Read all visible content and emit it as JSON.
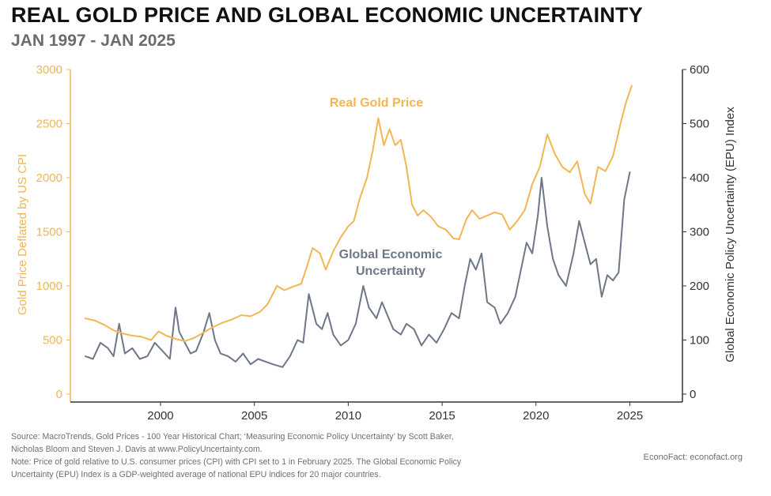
{
  "title": "REAL GOLD PRICE AND GLOBAL ECONOMIC UNCERTAINTY",
  "subtitle": "JAN 1997 - JAN 2025",
  "footer": {
    "source_line1": "Source: MacroTrends, Gold Prices - 100 Year Historical Chart; ‘Measuring Economic Policy Uncertainty’ by Scott Baker,",
    "source_line2": "Nicholas Bloom and Steven J. Davis at www.PolicyUncertainty.com.",
    "note_line1": "Note: Price of gold relative to U.S. consumer prices (CPI) with CPI set to 1 in February 2025. The Global Economic Policy",
    "note_line2": "Uncertainty (EPU) Index is a GDP-weighted average of national EPU indices for 20 major countries.",
    "credit": "EconoFact:   econofact.org"
  },
  "colors": {
    "gold": "#f2b654",
    "epu": "#6e7787",
    "title": "#111111",
    "subtitle": "#6b6b6b",
    "axis": "#333333"
  },
  "chart_data": {
    "type": "line",
    "xlabel": "",
    "xlim": [
      1995.2,
      2027.8
    ],
    "x_ticks": [
      2000,
      2005,
      2010,
      2015,
      2020,
      2025
    ],
    "ylabel_left": "Gold Price Deflated by US CPI",
    "ylim_left": [
      0,
      3000
    ],
    "y_ticks_left": [
      0,
      500,
      1000,
      1500,
      2000,
      2500,
      3000
    ],
    "ylabel_right": "Global Economic Policy Uncertainty (EPU) Index",
    "ylim_right": [
      0,
      600
    ],
    "y_ticks_right": [
      0,
      100,
      200,
      300,
      400,
      500,
      600
    ],
    "grid": false,
    "legend": "none",
    "annotations": [
      {
        "text": "Real Gold Price",
        "series": "gold"
      },
      {
        "text": "Global Economic",
        "series": "epu"
      },
      {
        "text": "Uncertainty",
        "series": "epu"
      }
    ],
    "series": [
      {
        "key": "gold",
        "name": "Real Gold Price",
        "axis": "left",
        "color": "#f2b654",
        "points": [
          [
            1996.0,
            700
          ],
          [
            1996.5,
            680
          ],
          [
            1997.0,
            640
          ],
          [
            1997.5,
            590
          ],
          [
            1998.0,
            560
          ],
          [
            1998.5,
            540
          ],
          [
            1999.0,
            530
          ],
          [
            1999.5,
            500
          ],
          [
            1999.9,
            580
          ],
          [
            2000.3,
            540
          ],
          [
            2000.8,
            510
          ],
          [
            2001.3,
            490
          ],
          [
            2001.8,
            520
          ],
          [
            2002.3,
            570
          ],
          [
            2002.8,
            620
          ],
          [
            2003.3,
            660
          ],
          [
            2003.8,
            690
          ],
          [
            2004.3,
            730
          ],
          [
            2004.8,
            720
          ],
          [
            2005.3,
            760
          ],
          [
            2005.7,
            830
          ],
          [
            2006.2,
            1000
          ],
          [
            2006.6,
            960
          ],
          [
            2007.0,
            990
          ],
          [
            2007.5,
            1020
          ],
          [
            2007.8,
            1180
          ],
          [
            2008.1,
            1350
          ],
          [
            2008.5,
            1300
          ],
          [
            2008.8,
            1150
          ],
          [
            2009.2,
            1320
          ],
          [
            2009.6,
            1450
          ],
          [
            2010.0,
            1550
          ],
          [
            2010.3,
            1600
          ],
          [
            2010.6,
            1800
          ],
          [
            2011.0,
            2000
          ],
          [
            2011.3,
            2250
          ],
          [
            2011.6,
            2550
          ],
          [
            2011.9,
            2300
          ],
          [
            2012.2,
            2450
          ],
          [
            2012.5,
            2300
          ],
          [
            2012.8,
            2350
          ],
          [
            2013.1,
            2100
          ],
          [
            2013.4,
            1750
          ],
          [
            2013.7,
            1650
          ],
          [
            2014.0,
            1700
          ],
          [
            2014.4,
            1640
          ],
          [
            2014.8,
            1550
          ],
          [
            2015.2,
            1520
          ],
          [
            2015.6,
            1440
          ],
          [
            2015.9,
            1430
          ],
          [
            2016.3,
            1620
          ],
          [
            2016.6,
            1700
          ],
          [
            2017.0,
            1620
          ],
          [
            2017.4,
            1650
          ],
          [
            2017.8,
            1680
          ],
          [
            2018.2,
            1660
          ],
          [
            2018.6,
            1520
          ],
          [
            2019.0,
            1600
          ],
          [
            2019.4,
            1700
          ],
          [
            2019.8,
            1940
          ],
          [
            2020.2,
            2100
          ],
          [
            2020.6,
            2400
          ],
          [
            2021.0,
            2220
          ],
          [
            2021.4,
            2100
          ],
          [
            2021.8,
            2050
          ],
          [
            2022.2,
            2150
          ],
          [
            2022.6,
            1850
          ],
          [
            2022.9,
            1760
          ],
          [
            2023.3,
            2100
          ],
          [
            2023.7,
            2060
          ],
          [
            2024.1,
            2200
          ],
          [
            2024.5,
            2500
          ],
          [
            2024.8,
            2700
          ],
          [
            2025.1,
            2850
          ]
        ]
      },
      {
        "key": "epu",
        "name": "Global Economic Uncertainty",
        "axis": "right",
        "color": "#6e7787",
        "points": [
          [
            1996.0,
            70
          ],
          [
            1996.4,
            65
          ],
          [
            1996.8,
            95
          ],
          [
            1997.2,
            85
          ],
          [
            1997.5,
            70
          ],
          [
            1997.8,
            130
          ],
          [
            1998.1,
            75
          ],
          [
            1998.5,
            85
          ],
          [
            1998.9,
            65
          ],
          [
            1999.3,
            70
          ],
          [
            1999.7,
            95
          ],
          [
            2000.1,
            80
          ],
          [
            2000.5,
            65
          ],
          [
            2000.8,
            160
          ],
          [
            2001.0,
            115
          ],
          [
            2001.3,
            95
          ],
          [
            2001.6,
            75
          ],
          [
            2001.9,
            80
          ],
          [
            2002.3,
            115
          ],
          [
            2002.6,
            150
          ],
          [
            2002.9,
            100
          ],
          [
            2003.2,
            75
          ],
          [
            2003.6,
            70
          ],
          [
            2004.0,
            60
          ],
          [
            2004.4,
            75
          ],
          [
            2004.8,
            55
          ],
          [
            2005.2,
            65
          ],
          [
            2005.6,
            60
          ],
          [
            2006.0,
            55
          ],
          [
            2006.5,
            50
          ],
          [
            2006.9,
            70
          ],
          [
            2007.3,
            100
          ],
          [
            2007.6,
            95
          ],
          [
            2007.9,
            185
          ],
          [
            2008.3,
            130
          ],
          [
            2008.6,
            120
          ],
          [
            2008.9,
            150
          ],
          [
            2009.2,
            110
          ],
          [
            2009.6,
            90
          ],
          [
            2010.0,
            100
          ],
          [
            2010.4,
            130
          ],
          [
            2010.8,
            200
          ],
          [
            2011.1,
            160
          ],
          [
            2011.5,
            140
          ],
          [
            2011.8,
            170
          ],
          [
            2012.1,
            145
          ],
          [
            2012.4,
            120
          ],
          [
            2012.8,
            110
          ],
          [
            2013.1,
            130
          ],
          [
            2013.5,
            120
          ],
          [
            2013.9,
            90
          ],
          [
            2014.3,
            110
          ],
          [
            2014.7,
            95
          ],
          [
            2015.1,
            120
          ],
          [
            2015.5,
            150
          ],
          [
            2015.9,
            140
          ],
          [
            2016.2,
            200
          ],
          [
            2016.5,
            250
          ],
          [
            2016.8,
            230
          ],
          [
            2017.1,
            260
          ],
          [
            2017.4,
            170
          ],
          [
            2017.8,
            160
          ],
          [
            2018.1,
            130
          ],
          [
            2018.5,
            150
          ],
          [
            2018.9,
            180
          ],
          [
            2019.2,
            230
          ],
          [
            2019.5,
            280
          ],
          [
            2019.8,
            260
          ],
          [
            2020.1,
            330
          ],
          [
            2020.3,
            400
          ],
          [
            2020.6,
            310
          ],
          [
            2020.9,
            250
          ],
          [
            2021.2,
            220
          ],
          [
            2021.6,
            200
          ],
          [
            2022.0,
            260
          ],
          [
            2022.3,
            320
          ],
          [
            2022.6,
            280
          ],
          [
            2022.9,
            240
          ],
          [
            2023.2,
            250
          ],
          [
            2023.5,
            180
          ],
          [
            2023.8,
            220
          ],
          [
            2024.1,
            210
          ],
          [
            2024.4,
            225
          ],
          [
            2024.7,
            360
          ],
          [
            2025.0,
            410
          ]
        ]
      }
    ]
  }
}
